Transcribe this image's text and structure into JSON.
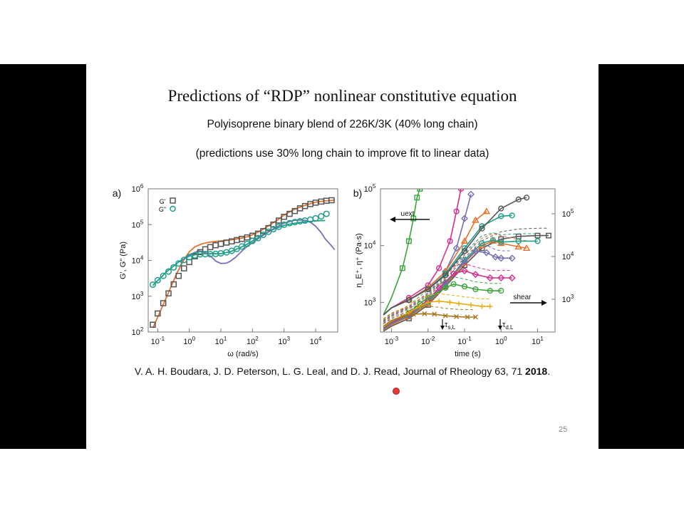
{
  "slide": {
    "title": "Predictions of “RDP” nonlinear constitutive equation",
    "subtitle": "Polyisoprene binary blend of 226K/3K (40% long chain)",
    "subtitle2": "(predictions use 30% long chain to improve fit to linear data)",
    "citation_text": "V. A. H. Boudara, J. D. Peterson, L. G. Leal, and D. J. Read, Journal of Rheology 63, 71 ",
    "citation_year": "2018",
    "citation_end": ".",
    "page_number": "25"
  },
  "chart_data": [
    {
      "type": "scatter",
      "panel_label": "a)",
      "xlabel": "ω (rad/s)",
      "ylabel": "G', G\" (Pa)",
      "xscale": "log",
      "yscale": "log",
      "xlim": [
        0.05,
        50000
      ],
      "ylim": [
        100,
        1000000
      ],
      "x_ticks": [
        "10",
        "10",
        "10",
        "10",
        "10",
        "10"
      ],
      "x_tick_exponents": [
        "-1",
        "0",
        "1",
        "2",
        "3",
        "4"
      ],
      "y_ticks": [
        "10",
        "10",
        "10",
        "10",
        "10"
      ],
      "y_tick_exponents": [
        "2",
        "3",
        "4",
        "5",
        "6"
      ],
      "legend": [
        {
          "label": "G'",
          "marker": "square",
          "color": "#555555"
        },
        {
          "label": "G\"",
          "marker": "circle",
          "color": "#1f9e89"
        }
      ],
      "legend_position": "top-left",
      "series": [
        {
          "name": "G'",
          "marker": "square",
          "color": "#555555",
          "x": [
            0.07,
            0.1,
            0.15,
            0.22,
            0.32,
            0.46,
            0.68,
            1,
            1.5,
            2.2,
            3.2,
            4.6,
            6.8,
            10,
            15,
            22,
            32,
            46,
            68,
            100,
            150,
            220,
            320,
            460,
            680,
            1000,
            1500,
            2200,
            3200,
            4600,
            6800,
            10000,
            15000,
            22000,
            32000
          ],
          "y": [
            160,
            330,
            640,
            1200,
            2150,
            3700,
            6000,
            9000,
            13000,
            17000,
            20500,
            23500,
            26500,
            29000,
            31500,
            34000,
            37000,
            40000,
            44000,
            49000,
            56000,
            66000,
            80000,
            100000,
            130000,
            165000,
            200000,
            240000,
            285000,
            330000,
            375000,
            410000,
            440000,
            465000,
            480000
          ]
        },
        {
          "name": "G\"",
          "marker": "circle",
          "color": "#1f9e89",
          "x": [
            0.07,
            0.1,
            0.15,
            0.22,
            0.32,
            0.46,
            0.68,
            1,
            1.5,
            2.2,
            3.2,
            4.6,
            6.8,
            10,
            15,
            22,
            32,
            46,
            68,
            100,
            150,
            220,
            320,
            460,
            680,
            1000,
            1500,
            2200,
            3200,
            4600,
            6800,
            10000,
            15000,
            22000
          ],
          "y": [
            2100,
            2800,
            3700,
            4900,
            6400,
            8200,
            10300,
            12300,
            13800,
            14800,
            15000,
            15000,
            15200,
            15800,
            16800,
            18500,
            21000,
            24500,
            29000,
            35000,
            42000,
            52000,
            63000,
            75000,
            87000,
            99000,
            110000,
            118000,
            124000,
            130000,
            138000,
            150000,
            170000,
            200000
          ]
        }
      ],
      "model_curves": [
        {
          "color": "#e8702a",
          "x": [
            0.07,
            0.1,
            0.2,
            0.4,
            0.7,
            1,
            1.5,
            2.5,
            4,
            7,
            10,
            20,
            40,
            70,
            100,
            200,
            400,
            700,
            1000,
            2000,
            4000,
            7000,
            10000,
            20000,
            40000
          ],
          "y": [
            130,
            260,
            1050,
            4300,
            11000,
            17500,
            24000,
            29000,
            32000,
            34000,
            35000,
            37500,
            41000,
            46000,
            52000,
            70000,
            105000,
            145000,
            185000,
            260000,
            330000,
            385000,
            420000,
            460000,
            480000
          ]
        },
        {
          "color": "#1f9e89",
          "x": [
            0.07,
            0.2,
            0.5,
            1,
            2,
            4,
            7,
            10,
            20,
            40,
            70,
            100,
            200,
            400,
            700,
            1000,
            2000,
            4000,
            7000,
            10000,
            20000
          ],
          "y": [
            2000,
            5000,
            9500,
            13200,
            15200,
            15500,
            15300,
            15500,
            17500,
            22500,
            29000,
            35000,
            50000,
            70000,
            85000,
            95000,
            108000,
            118000,
            124000,
            128000,
            130000
          ]
        },
        {
          "color": "#7570b3",
          "x": [
            0.5,
            1,
            2,
            3,
            5,
            7,
            10,
            15,
            20,
            30,
            50,
            70,
            100,
            200,
            300,
            500,
            1000,
            2000,
            3000,
            5000,
            7000,
            10000,
            15000,
            20000,
            30000,
            40000
          ],
          "y": [
            9000,
            14500,
            18500,
            17000,
            12500,
            9500,
            8200,
            8400,
            9500,
            12500,
            19500,
            25500,
            31000,
            48000,
            60000,
            80000,
            110000,
            130000,
            135000,
            130000,
            115000,
            90000,
            60000,
            40000,
            27000,
            20000
          ]
        }
      ]
    },
    {
      "type": "line",
      "panel_label": "b)",
      "xlabel": "time (s)",
      "ylabel": "η_E⁺, η⁺ (Pa·s)",
      "xscale": "log",
      "yscale": "log",
      "xlim": [
        0.0005,
        30
      ],
      "ylim": [
        300,
        100000
      ],
      "x_ticks": [
        "10",
        "10",
        "10",
        "10",
        "10"
      ],
      "x_tick_exponents": [
        "-3",
        "-2",
        "-1",
        "0",
        "1"
      ],
      "y_ticks_left": [
        "10",
        "10",
        "10"
      ],
      "y_ticks_left_exponents": [
        "3",
        "4",
        "5"
      ],
      "y_ticks_right": [
        "10",
        "10",
        "10"
      ],
      "y_ticks_right_exponents": [
        "3",
        "4",
        "5"
      ],
      "annotations": {
        "uext": "uext",
        "shear": "shear",
        "tau_s": "τ",
        "tau_s_sub": "s,L",
        "tau_d": "τ",
        "tau_d_sub": "d,L"
      },
      "extension_series": [
        {
          "color": "#3aa43a",
          "x": [
            0.0006,
            0.001,
            0.002,
            0.003,
            0.004,
            0.005,
            0.006
          ],
          "y": [
            600,
            1200,
            4000,
            12000,
            30000,
            70000,
            100000
          ]
        },
        {
          "color": "#d62d8f",
          "x": [
            0.0006,
            0.001,
            0.003,
            0.01,
            0.02,
            0.04,
            0.06,
            0.08
          ],
          "y": [
            600,
            800,
            1200,
            2000,
            4000,
            12000,
            40000,
            100000
          ]
        },
        {
          "color": "#7570b3",
          "x": [
            0.0006,
            0.001,
            0.003,
            0.01,
            0.03,
            0.06,
            0.1,
            0.15
          ],
          "y": [
            600,
            800,
            1100,
            1800,
            3500,
            9000,
            30000,
            80000
          ]
        },
        {
          "color": "#e8702a",
          "x": [
            0.0006,
            0.001,
            0.003,
            0.01,
            0.03,
            0.1,
            0.2,
            0.4
          ],
          "y": [
            600,
            800,
            1100,
            1800,
            3500,
            12000,
            28000,
            40000
          ]
        },
        {
          "color": "#1f9e89",
          "x": [
            0.0006,
            0.001,
            0.003,
            0.01,
            0.03,
            0.1,
            0.3,
            1,
            2
          ],
          "y": [
            600,
            800,
            1100,
            1700,
            3200,
            9000,
            22000,
            33000,
            34000
          ]
        },
        {
          "color": "#555555",
          "x": [
            0.0006,
            0.001,
            0.003,
            0.01,
            0.03,
            0.1,
            0.3,
            1,
            3,
            5
          ],
          "y": [
            600,
            800,
            1100,
            1700,
            3000,
            8000,
            20000,
            45000,
            65000,
            70000
          ]
        }
      ],
      "shear_series": [
        {
          "color": "#555555",
          "x": [
            0.0006,
            0.001,
            0.003,
            0.01,
            0.03,
            0.1,
            0.3,
            1,
            3,
            10,
            20
          ],
          "y": [
            310,
            380,
            520,
            900,
            1900,
            4500,
            9000,
            13000,
            14500,
            15000,
            15000
          ]
        },
        {
          "color": "#e8702a",
          "x": [
            0.0006,
            0.001,
            0.003,
            0.01,
            0.03,
            0.1,
            0.3,
            0.6,
            1,
            3,
            5
          ],
          "y": [
            320,
            400,
            560,
            950,
            2000,
            5000,
            10000,
            12000,
            11000,
            9500,
            9000
          ]
        },
        {
          "color": "#1f9e89",
          "x": [
            0.0006,
            0.001,
            0.003,
            0.01,
            0.03,
            0.1,
            0.3,
            0.6,
            1,
            3,
            10
          ],
          "y": [
            330,
            420,
            580,
            1000,
            2100,
            5600,
            11000,
            12500,
            11500,
            12000,
            12000
          ]
        },
        {
          "color": "#7570b3",
          "x": [
            0.0006,
            0.001,
            0.003,
            0.01,
            0.03,
            0.1,
            0.2,
            0.4,
            0.7,
            1,
            2
          ],
          "y": [
            340,
            430,
            600,
            1050,
            2200,
            5200,
            8000,
            7500,
            6300,
            6000,
            6000
          ]
        },
        {
          "color": "#d62d8f",
          "x": [
            0.0006,
            0.001,
            0.003,
            0.01,
            0.02,
            0.05,
            0.1,
            0.2,
            0.5,
            1,
            2
          ],
          "y": [
            350,
            440,
            620,
            1100,
            1800,
            3200,
            3600,
            3100,
            2700,
            2700,
            2700
          ]
        },
        {
          "color": "#3aa43a",
          "x": [
            0.0006,
            0.001,
            0.003,
            0.006,
            0.01,
            0.03,
            0.05,
            0.1,
            0.2,
            0.5,
            1
          ],
          "y": [
            360,
            460,
            650,
            950,
            1200,
            1800,
            2100,
            1900,
            1700,
            1600,
            1600
          ]
        },
        {
          "color": "#e6ab02",
          "x": [
            0.0006,
            0.001,
            0.003,
            0.006,
            0.01,
            0.02,
            0.04,
            0.07,
            0.15,
            0.3,
            0.5
          ],
          "y": [
            370,
            470,
            660,
            850,
            1000,
            1050,
            1000,
            950,
            900,
            850,
            850
          ]
        },
        {
          "color": "#a6761d",
          "x": [
            0.0006,
            0.001,
            0.002,
            0.004,
            0.008,
            0.015,
            0.03,
            0.06,
            0.12,
            0.2
          ],
          "y": [
            380,
            480,
            560,
            620,
            630,
            620,
            580,
            560,
            550,
            550
          ]
        }
      ]
    }
  ]
}
